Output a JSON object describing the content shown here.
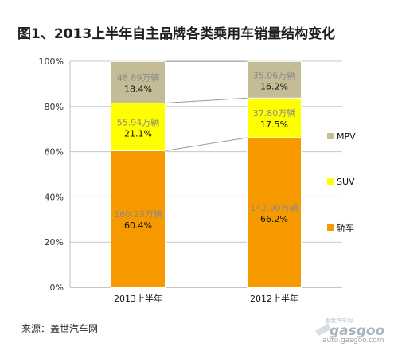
{
  "title": "图1、2013上半年自主品牌各类乘用车销量结构变化",
  "source": "来源：盖世汽车网",
  "watermark": {
    "logo_text": "gasgoo",
    "tagline": "盖世汽车网",
    "url": "auto.gasgoo.com"
  },
  "chart_data": {
    "type": "bar",
    "stacked": true,
    "percent": true,
    "title": "图1、2013上半年自主品牌各类乘用车销量结构变化",
    "categories": [
      "2013上半年",
      "2012上半年"
    ],
    "ylim": [
      0,
      100
    ],
    "yticks": [
      "0%",
      "20%",
      "40%",
      "60%",
      "80%",
      "100%"
    ],
    "grid": true,
    "legend_position": "right",
    "series": [
      {
        "name": "轿车",
        "color": "#f79a00",
        "percent": [
          60.4,
          66.2
        ],
        "labels": [
          "60.4%",
          "66.2%"
        ],
        "volume": [
          "160.23万辆",
          "142.90万辆"
        ]
      },
      {
        "name": "SUV",
        "color": "#ffff00",
        "percent": [
          21.1,
          17.5
        ],
        "labels": [
          "21.1%",
          "17.5%"
        ],
        "volume": [
          "55.94万辆",
          "37.80万辆"
        ]
      },
      {
        "name": "MPV",
        "color": "#c4bc96",
        "percent": [
          18.4,
          16.2
        ],
        "labels": [
          "18.4%",
          "16.2%"
        ],
        "volume": [
          "48.89万辆",
          "35.06万辆"
        ]
      }
    ]
  }
}
